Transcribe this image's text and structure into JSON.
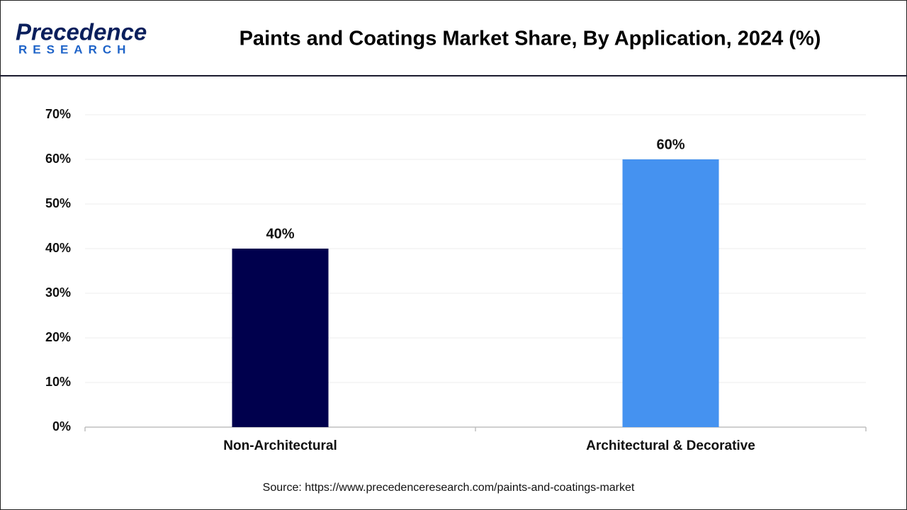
{
  "logo": {
    "name": "Precedence",
    "sub": "RESEARCH"
  },
  "chart_data": {
    "type": "bar",
    "title": "Paints and Coatings Market Share, By Application, 2024 (%)",
    "categories": [
      "Non-Architectural",
      "Architectural & Decorative"
    ],
    "values": [
      40,
      60
    ],
    "value_labels": [
      "40%",
      "60%"
    ],
    "colors": [
      "#00004d",
      "#4592f0"
    ],
    "ylim": [
      0,
      70
    ],
    "yticks": [
      {
        "value": 0,
        "label": "0%"
      },
      {
        "value": 10,
        "label": "10%"
      },
      {
        "value": 20,
        "label": "20%"
      },
      {
        "value": 30,
        "label": "30%"
      },
      {
        "value": 40,
        "label": "40%"
      },
      {
        "value": 50,
        "label": "50%"
      },
      {
        "value": 60,
        "label": "60%"
      },
      {
        "value": 70,
        "label": "70%"
      }
    ],
    "grid": true,
    "source": "Source: https://www.precedenceresearch.com/paints-and-coatings-market"
  }
}
